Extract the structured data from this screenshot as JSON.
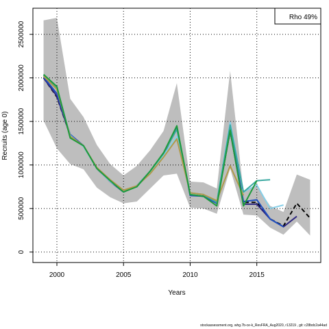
{
  "chart_data": {
    "type": "line",
    "title": "",
    "xlabel": "Years",
    "ylabel": "Recruits (age 0)",
    "xlim": [
      1998.2,
      2019.8
    ],
    "ylim": [
      -120000,
      2800000
    ],
    "x_ticks": [
      2000,
      2005,
      2010,
      2015
    ],
    "x_tick_labels": [
      "2000",
      "2005",
      "2010",
      "2015"
    ],
    "y_ticks": [
      0,
      500000,
      1000000,
      1500000,
      2000000,
      2500000
    ],
    "y_tick_labels": [
      "0",
      "500000",
      "1000000",
      "1500000",
      "2000000",
      "2500000"
    ],
    "grid": true,
    "legend_text": "Rho 49%",
    "legend_position": "top-right",
    "confidence_band": {
      "color": "#bebebe",
      "x": [
        1999,
        2000,
        2001,
        2002,
        2003,
        2004,
        2005,
        2006,
        2007,
        2008,
        2009,
        2010,
        2011,
        2012,
        2013,
        2014,
        2015,
        2016,
        2017,
        2018,
        2019
      ],
      "upper": [
        2660000,
        2690000,
        1760000,
        1550000,
        1230000,
        1010000,
        880000,
        990000,
        1170000,
        1390000,
        1940000,
        810000,
        800000,
        730000,
        2080000,
        690000,
        760000,
        530000,
        460000,
        890000,
        830000
      ],
      "lower": [
        1510000,
        1190000,
        1010000,
        950000,
        740000,
        630000,
        560000,
        580000,
        730000,
        880000,
        900000,
        510000,
        500000,
        440000,
        960000,
        430000,
        420000,
        280000,
        200000,
        350000,
        190000
      ]
    },
    "series": [
      {
        "color": "#000000",
        "dash": true,
        "x": [
          1999,
          2000,
          2001,
          2002,
          2003,
          2004,
          2005,
          2006,
          2007,
          2008,
          2009,
          2010,
          2011,
          2012,
          2013,
          2014,
          2015,
          2016,
          2017,
          2018,
          2019
        ],
        "values": [
          2000000,
          1780000,
          1340000,
          1220000,
          960000,
          810000,
          690000,
          760000,
          920000,
          1120000,
          1430000,
          660000,
          640000,
          560000,
          1390000,
          570000,
          570000,
          380000,
          300000,
          560000,
          390000
        ]
      },
      {
        "color": "#2c2580",
        "x": [
          1999,
          2000,
          2001,
          2002,
          2003,
          2004,
          2005,
          2006,
          2007,
          2008,
          2009,
          2010,
          2011,
          2012,
          2013,
          2014,
          2015,
          2016,
          2017,
          2018
        ],
        "values": [
          2000000,
          1790000,
          1340000,
          1220000,
          960000,
          810000,
          690000,
          760000,
          920000,
          1120000,
          1430000,
          660000,
          640000,
          560000,
          1390000,
          550000,
          550000,
          380000,
          290000,
          410000
        ]
      },
      {
        "color": "#1f4fbf",
        "x": [
          1999,
          2000,
          2001,
          2002,
          2003,
          2004,
          2005,
          2006,
          2007,
          2008,
          2009,
          2010,
          2011,
          2012,
          2013,
          2014,
          2015,
          2016,
          2017
        ],
        "values": [
          2010000,
          1820000,
          1350000,
          1220000,
          960000,
          810000,
          690000,
          760000,
          920000,
          1120000,
          1440000,
          650000,
          640000,
          560000,
          1400000,
          580000,
          600000,
          380000,
          290000
        ]
      },
      {
        "color": "#87cfe8",
        "x": [
          1999,
          2000,
          2001,
          2002,
          2003,
          2004,
          2005,
          2006,
          2007,
          2008,
          2009,
          2010,
          2011,
          2012,
          2013,
          2014,
          2015,
          2016,
          2017
        ],
        "values": [
          2030000,
          1880000,
          1340000,
          1210000,
          960000,
          810000,
          700000,
          750000,
          920000,
          1110000,
          1330000,
          670000,
          660000,
          570000,
          1490000,
          690000,
          770000,
          500000,
          540000
        ]
      },
      {
        "color": "#38a8a0",
        "x": [
          1999,
          2000,
          2001,
          2002,
          2003,
          2004,
          2005,
          2006,
          2007,
          2008,
          2009,
          2010,
          2011,
          2012,
          2013,
          2014,
          2015,
          2016
        ],
        "values": [
          2030000,
          1890000,
          1330000,
          1220000,
          960000,
          820000,
          690000,
          760000,
          930000,
          1130000,
          1410000,
          680000,
          660000,
          570000,
          1460000,
          690000,
          820000,
          830000
        ]
      },
      {
        "color": "#b09a4a",
        "x": [
          1999,
          2000,
          2001,
          2002,
          2003,
          2004,
          2005,
          2006,
          2007,
          2008,
          2009,
          2010,
          2011,
          2012,
          2013,
          2014
        ],
        "values": [
          2020000,
          1870000,
          1330000,
          1220000,
          970000,
          830000,
          710000,
          760000,
          900000,
          1090000,
          1300000,
          680000,
          660000,
          590000,
          990000,
          650000
        ]
      },
      {
        "color": "#1e9a3c",
        "x": [
          1999,
          2000,
          2001,
          2002,
          2003,
          2004,
          2005,
          2006,
          2007,
          2008,
          2009,
          2010,
          2011,
          2012,
          2013,
          2014,
          2015
        ],
        "values": [
          2040000,
          1900000,
          1310000,
          1220000,
          960000,
          820000,
          690000,
          750000,
          930000,
          1140000,
          1450000,
          660000,
          640000,
          530000,
          1400000,
          530000,
          820000
        ]
      }
    ]
  },
  "footer": {
    "text": "stockassessment.org, whg.7b-ce-k_RevFRA_Aug2020, r13219 , git: c28bdc2a44ad"
  }
}
